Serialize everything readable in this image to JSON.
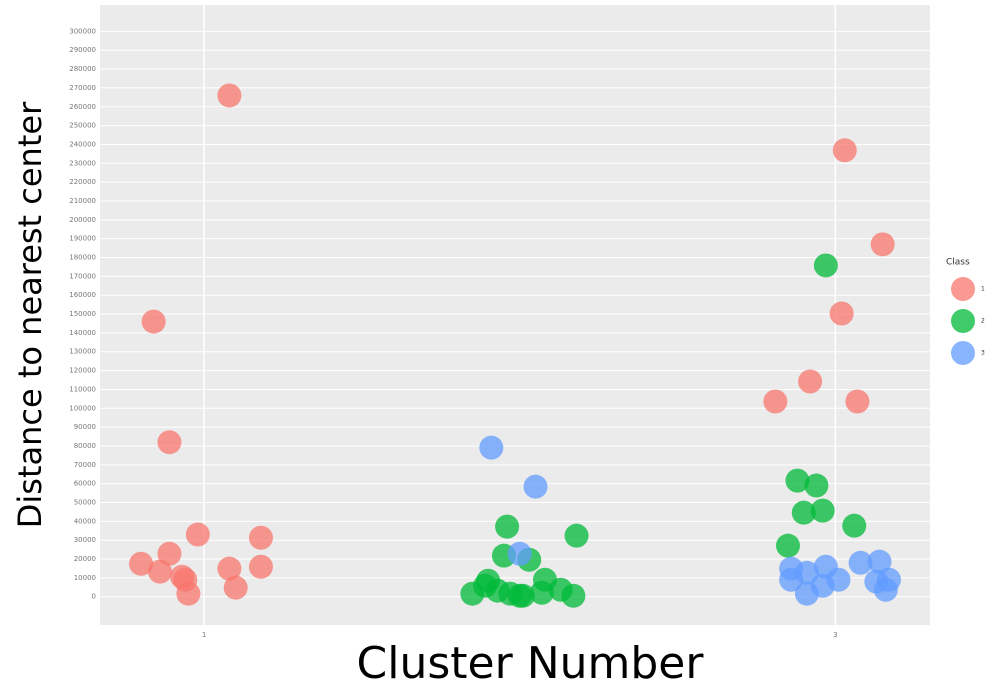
{
  "chart_data": {
    "type": "scatter",
    "x_label": "Cluster Number",
    "y_label": "Distance to nearest center",
    "legend_title": "Class",
    "legend_position": "right",
    "grid": true,
    "xlim": [
      0.67,
      3.3
    ],
    "xticks": [
      1,
      3
    ],
    "ylim": [
      -15000,
      314000
    ],
    "yticks": [
      0,
      10000,
      20000,
      30000,
      40000,
      50000,
      60000,
      70000,
      80000,
      90000,
      100000,
      110000,
      120000,
      130000,
      140000,
      150000,
      160000,
      170000,
      180000,
      190000,
      200000,
      210000,
      220000,
      230000,
      240000,
      250000,
      260000,
      270000,
      280000,
      290000,
      300000
    ],
    "series": [
      {
        "name": "1",
        "color": "#f8766d",
        "x": [
          1.08,
          0.84,
          0.89,
          0.98,
          0.8,
          0.86,
          0.89,
          0.93,
          0.94,
          0.95,
          1.08,
          1.1,
          1.18,
          1.18,
          3.03,
          3.15,
          3.02,
          2.92,
          2.81,
          3.07
        ],
        "values": [
          266000,
          146000,
          82000,
          33000,
          17500,
          13300,
          22800,
          10600,
          9000,
          1600,
          14900,
          4800,
          31300,
          15900,
          236900,
          187000,
          150300,
          114200,
          103600,
          103600
        ]
      },
      {
        "name": "2",
        "color": "#00ba38",
        "x": [
          1.96,
          2.18,
          1.95,
          2.03,
          1.85,
          1.89,
          1.9,
          1.93,
          1.97,
          2.0,
          2.01,
          2.08,
          2.07,
          2.13,
          2.17,
          2.97,
          2.88,
          2.94,
          2.9,
          2.96,
          3.06,
          2.85
        ],
        "values": [
          37200,
          32400,
          21800,
          19600,
          1600,
          5800,
          8500,
          3200,
          1600,
          500,
          500,
          9000,
          2100,
          3700,
          500,
          175800,
          61600,
          59000,
          44600,
          45700,
          37700,
          27100
        ]
      },
      {
        "name": "3",
        "color": "#619cff",
        "x": [
          1.91,
          2.05,
          2.0,
          2.86,
          2.86,
          2.91,
          2.97,
          2.91,
          2.96,
          3.01,
          3.08,
          3.14,
          3.13,
          3.17,
          3.16
        ],
        "values": [
          79100,
          58400,
          22800,
          14900,
          9000,
          12700,
          15900,
          1600,
          5800,
          9000,
          18000,
          18600,
          8000,
          9000,
          3700
        ]
      }
    ]
  }
}
